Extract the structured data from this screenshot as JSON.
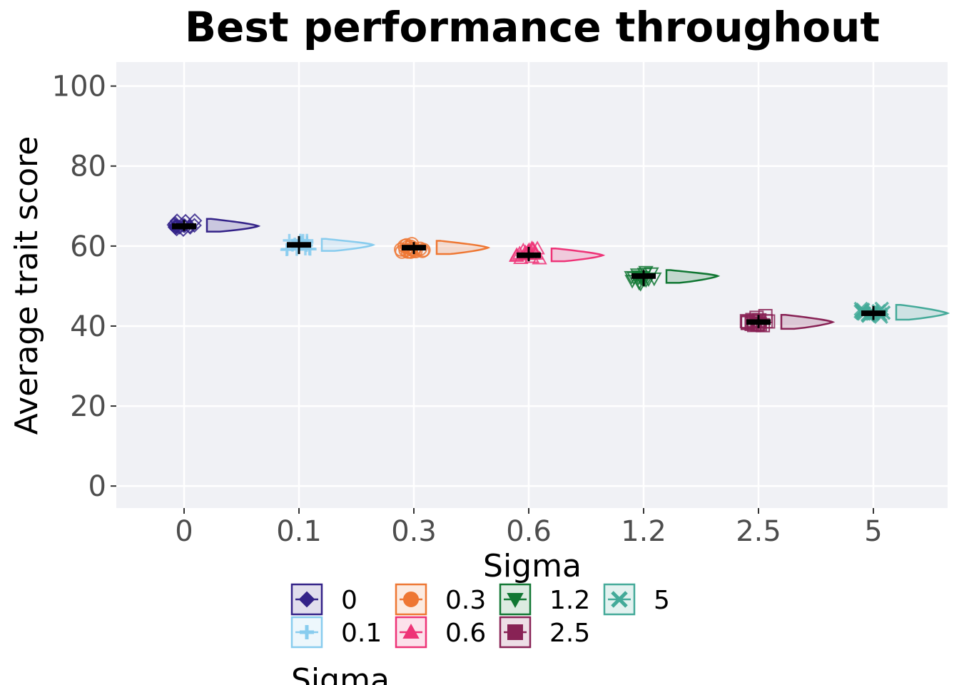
{
  "chart_data": {
    "type": "raincloud",
    "title": "Best performance throughout",
    "xlabel": "Sigma",
    "ylabel": "Average trait score",
    "ylim": [
      -5.5,
      106
    ],
    "yticks": [
      0,
      20,
      40,
      60,
      80,
      100
    ],
    "grid": true,
    "background": "#F0F1F5",
    "categories": [
      "0",
      "0.1",
      "0.3",
      "0.6",
      "1.2",
      "2.5",
      "5"
    ],
    "series": [
      {
        "name": "0",
        "color": "#332288",
        "marker": "diamond",
        "median": 65.0,
        "q1": 64.2,
        "q3": 65.7,
        "min": 63.8,
        "max": 66.5,
        "violin_top": 66.8,
        "violin_bottom": 63.6
      },
      {
        "name": "0.1",
        "color": "#88CCEE",
        "marker": "plus",
        "median": 60.3,
        "q1": 59.6,
        "q3": 61.0,
        "min": 58.0,
        "max": 62.5,
        "violin_top": 61.8,
        "violin_bottom": 58.8
      },
      {
        "name": "0.3",
        "color": "#EE7733",
        "marker": "circle",
        "median": 59.6,
        "q1": 58.9,
        "q3": 60.3,
        "min": 58.0,
        "max": 61.0,
        "violin_top": 61.3,
        "violin_bottom": 58.0
      },
      {
        "name": "0.6",
        "color": "#EE3377",
        "marker": "triangle-up",
        "median": 57.7,
        "q1": 57.0,
        "q3": 58.4,
        "min": 56.2,
        "max": 59.8,
        "violin_top": 59.4,
        "violin_bottom": 56.2
      },
      {
        "name": "1.2",
        "color": "#117733",
        "marker": "triangle-down",
        "median": 52.5,
        "q1": 51.8,
        "q3": 53.2,
        "min": 50.0,
        "max": 54.0,
        "violin_top": 54.0,
        "violin_bottom": 50.8
      },
      {
        "name": "2.5",
        "color": "#882255",
        "marker": "square",
        "median": 41.0,
        "q1": 40.3,
        "q3": 41.7,
        "min": 39.5,
        "max": 42.8,
        "violin_top": 42.8,
        "violin_bottom": 39.3
      },
      {
        "name": "5",
        "color": "#44AA99",
        "marker": "x",
        "median": 43.2,
        "q1": 42.5,
        "q3": 43.9,
        "min": 41.5,
        "max": 45.0,
        "violin_top": 45.3,
        "violin_bottom": 41.6
      }
    ],
    "legend": {
      "title": "Sigma",
      "position": "bottom"
    }
  }
}
